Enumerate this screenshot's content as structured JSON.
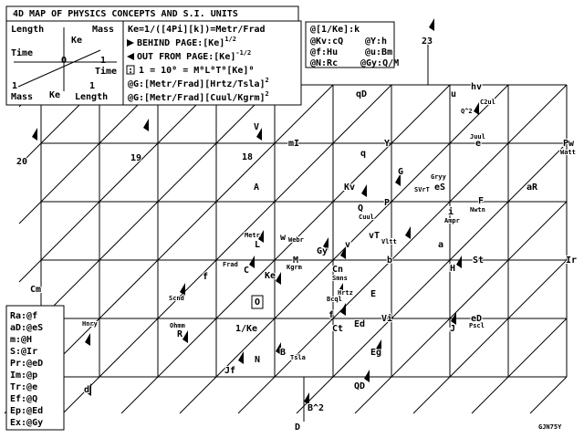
{
  "header": {
    "title": "4D MAP OF PHYSICS CONCEPTS AND S.I. UNITS"
  },
  "axes_key": {
    "length_top": "Length",
    "ke_top": "Ke",
    "mass_top": "Mass",
    "time_left": "Time",
    "origin": "O",
    "one_right": "1",
    "time_right": "Time",
    "one_bottom_left": "1",
    "one_bottom_right": "1",
    "mass_bottom": "Mass",
    "ke_bottom": "Ke",
    "length_bottom": "Length"
  },
  "definitions": [
    {
      "text": "Ke=1/([4Pi][k])=Metr/Frad"
    },
    {
      "text": "BEHIND PAGE:[Ke]",
      "sup": "1/2"
    },
    {
      "text": "OUT FROM PAGE:[Ke]",
      "sup": "-1/2"
    },
    {
      "text": ": 1 = 10⁰ = M⁰L⁰T⁰[Ke]⁰"
    },
    {
      "text": "@G:[Metr/Frad][Hrtz/Tsla]",
      "sup": "2"
    },
    {
      "text": "@G:[Metr/Frad][Cuul/Kgrm]",
      "sup": "2"
    }
  ],
  "operations": [
    "@[1/Ke]:k",
    "@Kv:cQ",
    "@Y:h",
    "@f:Hu",
    "@u:Bm",
    "@N:Rc",
    "@Gy:Q/M"
  ],
  "key": [
    "Ra:@f",
    "aD:@eS",
    "m:@H",
    "S:@Ir",
    "Pr:@eD",
    "Im:@p",
    "Tr:@e",
    "Ef:@Q",
    "Ep:@Ed",
    "Ex:@Gy"
  ],
  "nodes": [
    {
      "label": "23"
    },
    {
      "label": "qD"
    },
    {
      "label": "u"
    },
    {
      "label": "hv"
    },
    {
      "label": "C2ul"
    },
    {
      "label": "Q^2"
    },
    {
      "label": "20"
    },
    {
      "label": "19"
    },
    {
      "label": "18"
    },
    {
      "label": "V"
    },
    {
      "label": "mI"
    },
    {
      "label": "Y"
    },
    {
      "label": "q"
    },
    {
      "label": "Juul"
    },
    {
      "label": "e"
    },
    {
      "label": "Pw"
    },
    {
      "label": "Watt"
    },
    {
      "label": "G"
    },
    {
      "label": "Gryy"
    },
    {
      "label": "eS"
    },
    {
      "label": "SVrT"
    },
    {
      "label": "A"
    },
    {
      "label": "Kv"
    },
    {
      "label": "P"
    },
    {
      "label": "Q"
    },
    {
      "label": "Cuul"
    },
    {
      "label": "F"
    },
    {
      "label": "Nwtn"
    },
    {
      "label": "i"
    },
    {
      "label": "Ampr"
    },
    {
      "label": "aR"
    },
    {
      "label": "Metr"
    },
    {
      "label": "w"
    },
    {
      "label": "Webr"
    },
    {
      "label": "L"
    },
    {
      "label": "Gy"
    },
    {
      "label": "v"
    },
    {
      "label": "vT"
    },
    {
      "label": "Vltt"
    },
    {
      "label": "a"
    },
    {
      "label": "Frad"
    },
    {
      "label": "C"
    },
    {
      "label": "M"
    },
    {
      "label": "Kgrm"
    },
    {
      "label": "Cn"
    },
    {
      "label": "Smns"
    },
    {
      "label": "b"
    },
    {
      "label": "H"
    },
    {
      "label": "St"
    },
    {
      "label": "Ir"
    },
    {
      "label": "Cm"
    },
    {
      "label": "Ke"
    },
    {
      "label": "f"
    },
    {
      "label": "Scnd"
    },
    {
      "label": "O"
    },
    {
      "label": "Hrtz"
    },
    {
      "label": "Bcql"
    },
    {
      "label": "E"
    },
    {
      "label": "1/Ke"
    },
    {
      "label": "f"
    },
    {
      "label": "Ct"
    },
    {
      "label": "Ed"
    },
    {
      "label": "Vi"
    },
    {
      "label": "eD"
    },
    {
      "label": "Pscl"
    },
    {
      "label": "J"
    },
    {
      "label": "Hnry"
    },
    {
      "label": "Ohmm"
    },
    {
      "label": "R"
    },
    {
      "label": "B"
    },
    {
      "label": "Tsla"
    },
    {
      "label": "N"
    },
    {
      "label": "Jf"
    },
    {
      "label": "Eg"
    },
    {
      "label": "QD"
    },
    {
      "label": "d"
    },
    {
      "label": "B^2"
    },
    {
      "label": "D"
    }
  ],
  "signature": "GJN75Y"
}
